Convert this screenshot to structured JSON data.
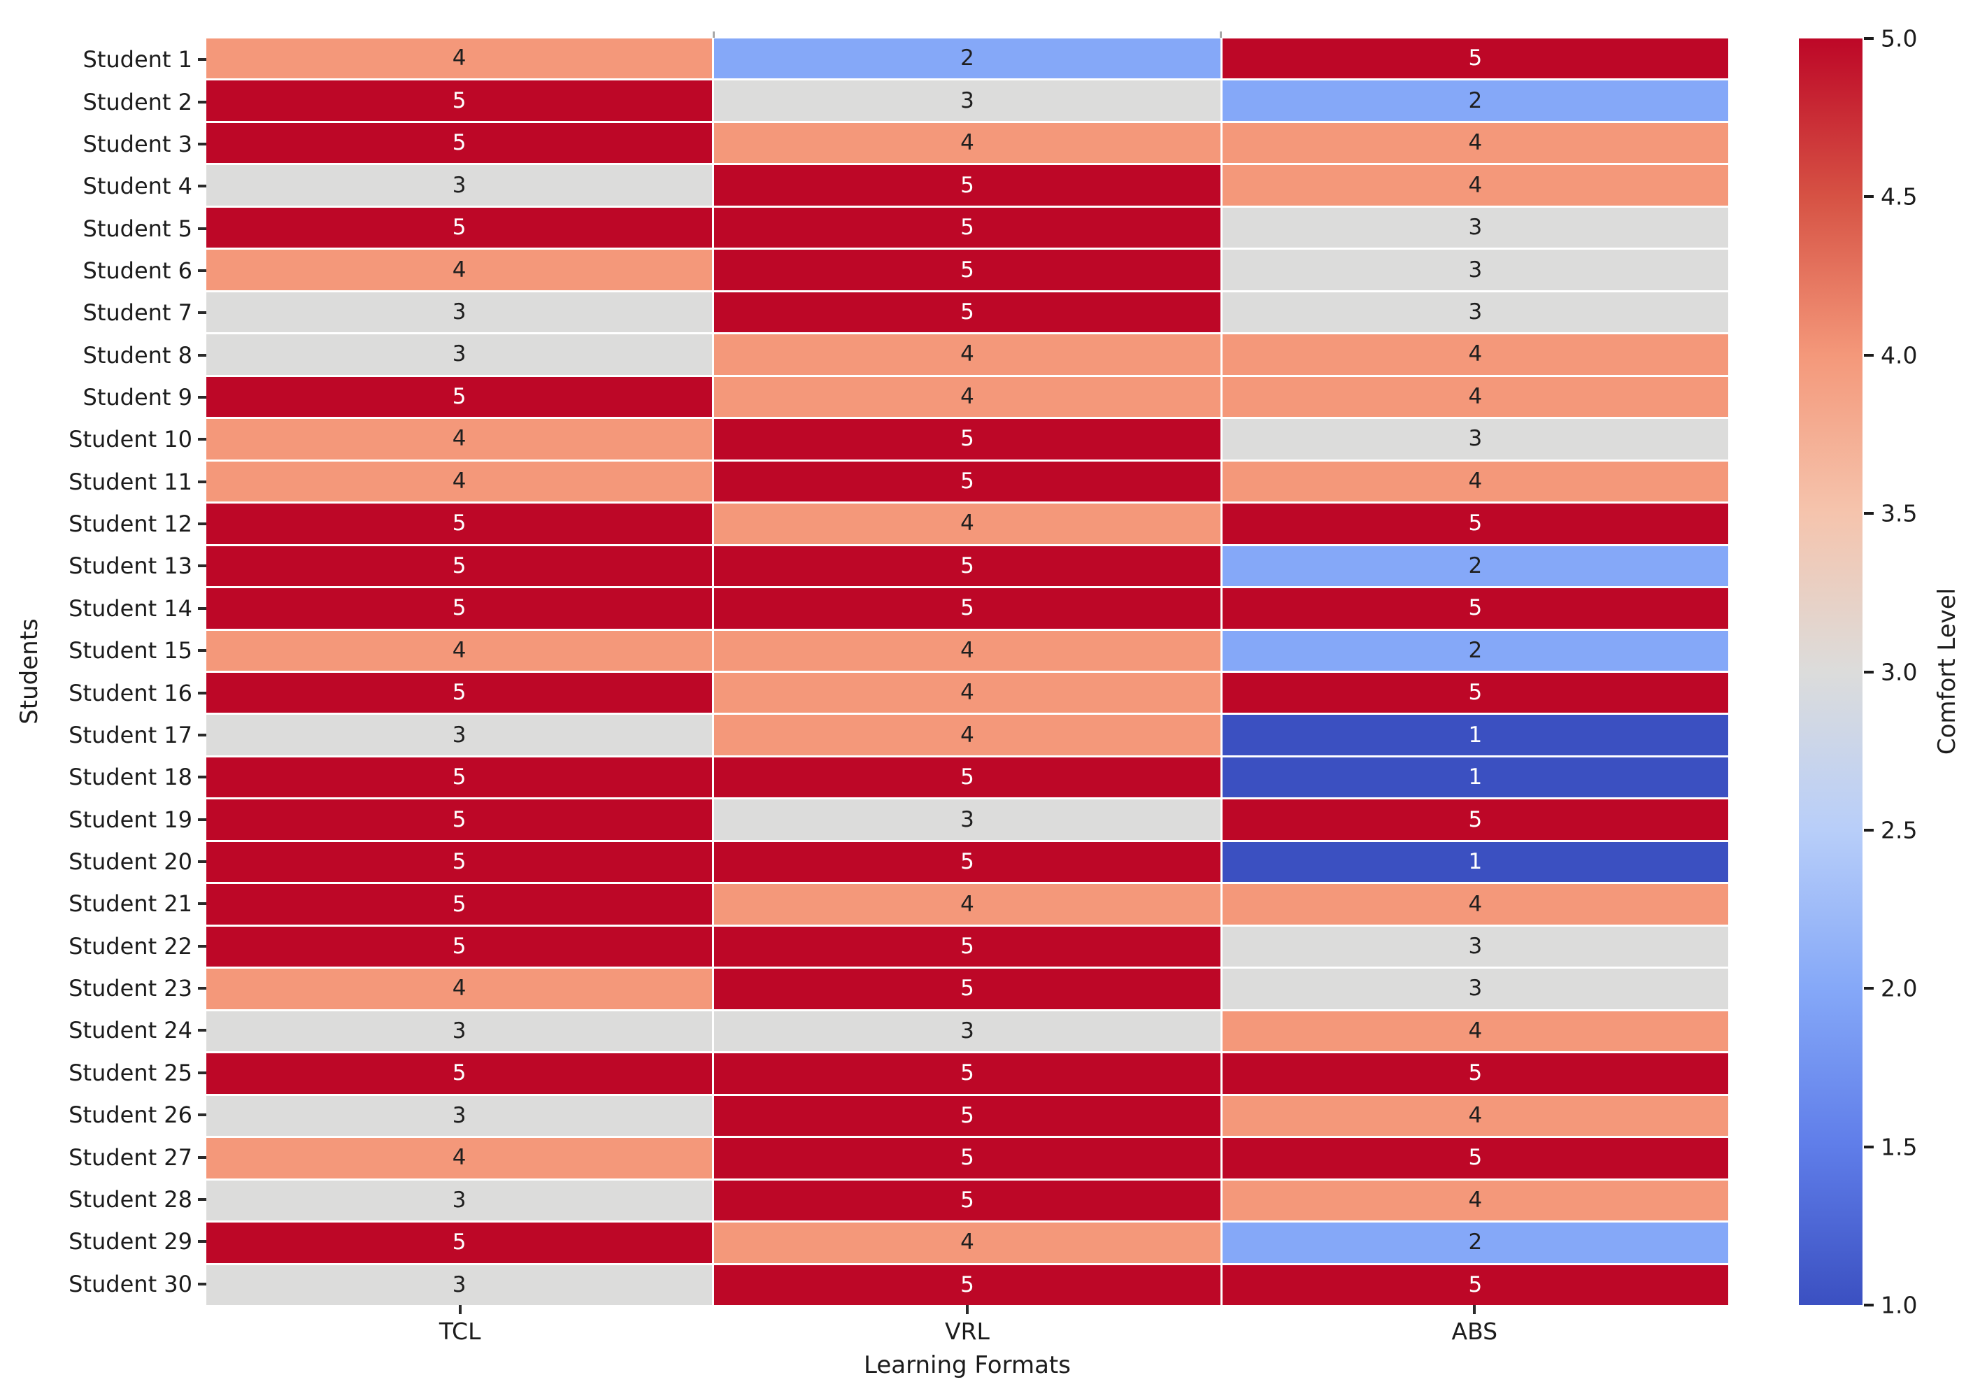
{
  "chart_data": {
    "type": "heatmap",
    "title": "",
    "xlabel": "Learning Formats",
    "ylabel": "Students",
    "columns": [
      "TCL",
      "VRL",
      "ABS"
    ],
    "rows": [
      "Student 1",
      "Student 2",
      "Student 3",
      "Student 4",
      "Student 5",
      "Student 6",
      "Student 7",
      "Student 8",
      "Student 9",
      "Student 10",
      "Student 11",
      "Student 12",
      "Student 13",
      "Student 14",
      "Student 15",
      "Student 16",
      "Student 17",
      "Student 18",
      "Student 19",
      "Student 20",
      "Student 21",
      "Student 22",
      "Student 23",
      "Student 24",
      "Student 25",
      "Student 26",
      "Student 27",
      "Student 28",
      "Student 29",
      "Student 30"
    ],
    "values": [
      [
        4,
        2,
        5
      ],
      [
        5,
        3,
        2
      ],
      [
        5,
        4,
        4
      ],
      [
        3,
        5,
        4
      ],
      [
        5,
        5,
        3
      ],
      [
        4,
        5,
        3
      ],
      [
        3,
        5,
        3
      ],
      [
        3,
        4,
        4
      ],
      [
        5,
        4,
        4
      ],
      [
        4,
        5,
        3
      ],
      [
        4,
        5,
        4
      ],
      [
        5,
        4,
        5
      ],
      [
        5,
        5,
        2
      ],
      [
        5,
        5,
        5
      ],
      [
        4,
        4,
        2
      ],
      [
        5,
        4,
        5
      ],
      [
        3,
        4,
        1
      ],
      [
        5,
        5,
        1
      ],
      [
        5,
        3,
        5
      ],
      [
        5,
        5,
        1
      ],
      [
        5,
        4,
        4
      ],
      [
        5,
        5,
        3
      ],
      [
        4,
        5,
        3
      ],
      [
        3,
        3,
        4
      ],
      [
        5,
        5,
        5
      ],
      [
        3,
        5,
        4
      ],
      [
        4,
        5,
        5
      ],
      [
        3,
        5,
        4
      ],
      [
        5,
        4,
        2
      ],
      [
        3,
        5,
        5
      ]
    ],
    "value_range": [
      1,
      5
    ],
    "colormap_name": "coolwarm",
    "colormap": {
      "1": "#3b50c1",
      "2": "#85a8f8",
      "3": "#dcdcdb",
      "4": "#f4987a",
      "5": "#bd0727"
    },
    "annotation_text_colors": {
      "dark": "#1f1f1f",
      "light": "#ffffff"
    },
    "colorbar": {
      "label": "Comfort Level",
      "min": 1.0,
      "max": 5.0,
      "tick_labels": [
        "5.0",
        "4.5",
        "4.0",
        "3.5",
        "3.0",
        "2.5",
        "2.0",
        "1.5",
        "1.0"
      ],
      "gradient_top_to_bottom": [
        "#bd0727",
        "#d65244",
        "#f4987a",
        "#f5c4ad",
        "#dcdcdb",
        "#b8cef9",
        "#85a8f8",
        "#5f7de9",
        "#3b50c1"
      ]
    }
  }
}
